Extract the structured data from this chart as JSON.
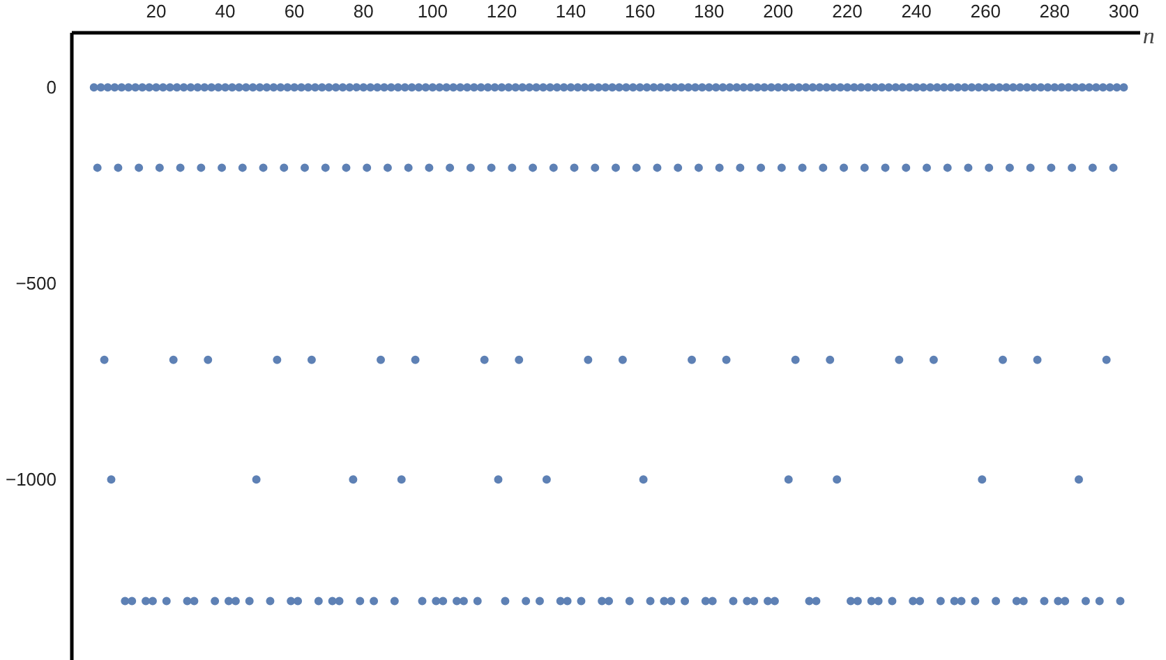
{
  "chart_data": {
    "type": "scatter",
    "xlabel": "n",
    "marker": "circle",
    "grid": false,
    "xlim": [
      -4.4,
      304.7
    ],
    "ylim": [
      -1462,
      139
    ],
    "xticks": [
      20,
      40,
      60,
      80,
      100,
      120,
      140,
      160,
      180,
      200,
      220,
      240,
      260,
      280,
      300
    ],
    "yticks": [
      {
        "value": 0,
        "label": "0"
      },
      {
        "value": -500,
        "label": "−500"
      },
      {
        "value": -1000,
        "label": "−1000"
      }
    ],
    "series": [
      {
        "color": "#5e81b5",
        "x": [
          2,
          3,
          4,
          5,
          6,
          7,
          8,
          9,
          10,
          11,
          12,
          13,
          14,
          15,
          16,
          17,
          18,
          19,
          20,
          21,
          22,
          23,
          24,
          25,
          26,
          27,
          28,
          29,
          30,
          31,
          32,
          33,
          34,
          35,
          36,
          37,
          38,
          39,
          40,
          41,
          42,
          43,
          44,
          45,
          46,
          47,
          48,
          49,
          50,
          51,
          52,
          53,
          54,
          55,
          56,
          57,
          58,
          59,
          60,
          61,
          62,
          63,
          64,
          65,
          66,
          67,
          68,
          69,
          70,
          71,
          72,
          73,
          74,
          75,
          76,
          77,
          78,
          79,
          80,
          81,
          82,
          83,
          84,
          85,
          86,
          87,
          88,
          89,
          90,
          91,
          92,
          93,
          94,
          95,
          96,
          97,
          98,
          99,
          100,
          101,
          102,
          103,
          104,
          105,
          106,
          107,
          108,
          109,
          110,
          111,
          112,
          113,
          114,
          115,
          116,
          117,
          118,
          119,
          120,
          121,
          122,
          123,
          124,
          125,
          126,
          127,
          128,
          129,
          130,
          131,
          132,
          133,
          134,
          135,
          136,
          137,
          138,
          139,
          140,
          141,
          142,
          143,
          144,
          145,
          146,
          147,
          148,
          149,
          150,
          151,
          152,
          153,
          154,
          155,
          156,
          157,
          158,
          159,
          160,
          161,
          162,
          163,
          164,
          165,
          166,
          167,
          168,
          169,
          170,
          171,
          172,
          173,
          174,
          175,
          176,
          177,
          178,
          179,
          180,
          181,
          182,
          183,
          184,
          185,
          186,
          187,
          188,
          189,
          190,
          191,
          192,
          193,
          194,
          195,
          196,
          197,
          198,
          199,
          200,
          201,
          202,
          203,
          204,
          205,
          206,
          207,
          208,
          209,
          210,
          211,
          212,
          213,
          214,
          215,
          216,
          217,
          218,
          219,
          220,
          221,
          222,
          223,
          224,
          225,
          226,
          227,
          228,
          229,
          230,
          231,
          232,
          233,
          234,
          235,
          236,
          237,
          238,
          239,
          240,
          241,
          242,
          243,
          244,
          245,
          246,
          247,
          248,
          249,
          250,
          251,
          252,
          253,
          254,
          255,
          256,
          257,
          258,
          259,
          260,
          261,
          262,
          263,
          264,
          265,
          266,
          267,
          268,
          269,
          270,
          271,
          272,
          273,
          274,
          275,
          276,
          277,
          278,
          279,
          280,
          281,
          282,
          283,
          284,
          285,
          286,
          287,
          288,
          289,
          290,
          291,
          292,
          293,
          294,
          295,
          296,
          297,
          298,
          299,
          300
        ],
        "values": [
          0,
          -205,
          0,
          -695,
          0,
          -1000,
          0,
          -205,
          0,
          -1310,
          0,
          -1310,
          0,
          -205,
          0,
          -1310,
          0,
          -1310,
          0,
          -205,
          0,
          -1310,
          0,
          -695,
          0,
          -205,
          0,
          -1310,
          0,
          -1310,
          0,
          -205,
          0,
          -695,
          0,
          -1310,
          0,
          -205,
          0,
          -1310,
          0,
          -1310,
          0,
          -205,
          0,
          -1310,
          0,
          -1000,
          0,
          -205,
          0,
          -1310,
          0,
          -695,
          0,
          -205,
          0,
          -1310,
          0,
          -1310,
          0,
          -205,
          0,
          -695,
          0,
          -1310,
          0,
          -205,
          0,
          -1310,
          0,
          -1310,
          0,
          -205,
          0,
          -1000,
          0,
          -1310,
          0,
          -205,
          0,
          -1310,
          0,
          -695,
          0,
          -205,
          0,
          -1310,
          0,
          -1000,
          0,
          -205,
          0,
          -695,
          0,
          -1310,
          0,
          -205,
          0,
          -1310,
          0,
          -1310,
          0,
          -205,
          0,
          -1310,
          0,
          -1310,
          0,
          -205,
          0,
          -1310,
          0,
          -695,
          0,
          -205,
          0,
          -1000,
          0,
          -1310,
          0,
          -205,
          0,
          -695,
          0,
          -1310,
          0,
          -205,
          0,
          -1310,
          0,
          -1000,
          0,
          -205,
          0,
          -1310,
          0,
          -1310,
          0,
          -205,
          0,
          -1310,
          0,
          -695,
          0,
          -205,
          0,
          -1310,
          0,
          -1310,
          0,
          -205,
          0,
          -695,
          0,
          -1310,
          0,
          -205,
          0,
          -1000,
          0,
          -1310,
          0,
          -205,
          0,
          -1310,
          0,
          -1310,
          0,
          -205,
          0,
          -1310,
          0,
          -695,
          0,
          -205,
          0,
          -1310,
          0,
          -1310,
          0,
          -205,
          0,
          -695,
          0,
          -1310,
          0,
          -205,
          0,
          -1310,
          0,
          -1310,
          0,
          -205,
          0,
          -1310,
          0,
          -1310,
          0,
          -205,
          0,
          -1000,
          0,
          -695,
          0,
          -205,
          0,
          -1310,
          0,
          -1310,
          0,
          -205,
          0,
          -695,
          0,
          -1000,
          0,
          -205,
          0,
          -1310,
          0,
          -1310,
          0,
          -205,
          0,
          -1310,
          0,
          -1310,
          0,
          -205,
          0,
          -1310,
          0,
          -695,
          0,
          -205,
          0,
          -1310,
          0,
          -1310,
          0,
          -205,
          0,
          -695,
          0,
          -1310,
          0,
          -205,
          0,
          -1310,
          0,
          -1310,
          0,
          -205,
          0,
          -1310,
          0,
          -1000,
          0,
          -205,
          0,
          -1310,
          0,
          -695,
          0,
          -205,
          0,
          -1310,
          0,
          -1310,
          0,
          -205,
          0,
          -695,
          0,
          -1310,
          0,
          -205,
          0,
          -1310,
          0,
          -1310,
          0,
          -205,
          0,
          -1000,
          0,
          -1310,
          0,
          -205,
          0,
          -1310,
          0,
          -695,
          0,
          -205,
          0,
          -1310,
          0
        ]
      }
    ]
  }
}
